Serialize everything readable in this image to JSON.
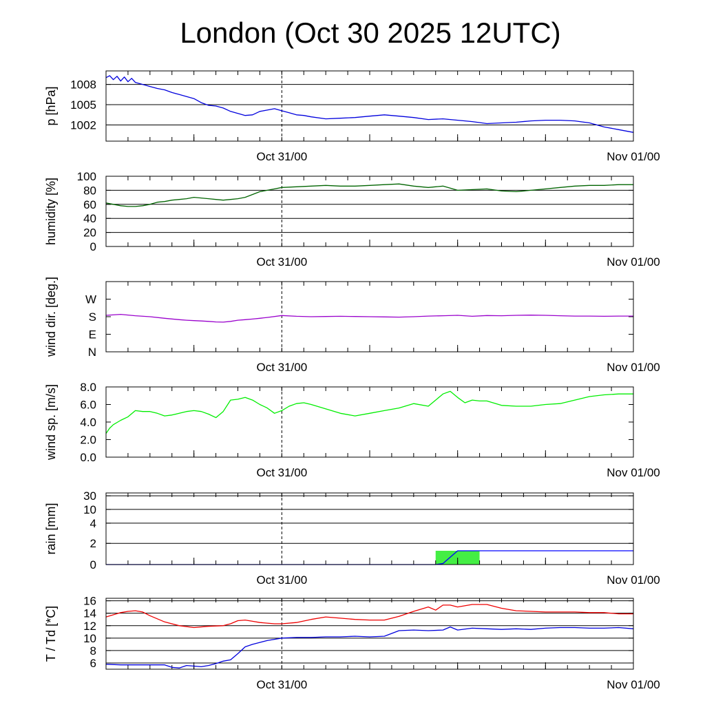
{
  "title": "London (Oct 30 2025 12UTC)",
  "time_axis": {
    "tick_labels": [
      "Oct 31/00",
      "Nov 01/00"
    ]
  },
  "chart_data": [
    {
      "type": "line",
      "ylabel": "p [hPa]",
      "ylim": [
        999.6,
        1010.0
      ],
      "yticks": [
        1008,
        1005,
        1002
      ],
      "ytick_labels": [
        "1008",
        "1005",
        "1002"
      ],
      "grid": true,
      "series": [
        {
          "color": "#0000dd",
          "x": [
            0,
            0.5,
            1,
            1.5,
            2,
            2.5,
            3,
            3.5,
            4,
            5,
            6,
            7,
            8,
            9,
            10,
            11,
            12,
            13,
            14,
            15,
            16,
            17,
            18,
            19,
            20,
            21,
            22,
            23,
            24,
            25,
            26,
            27,
            28,
            30,
            32,
            34,
            36,
            38,
            40,
            42,
            44,
            46,
            48,
            50,
            52,
            54,
            56,
            58,
            60,
            62,
            64,
            66,
            68,
            70,
            72
          ],
          "y": [
            1009.0,
            1009.3,
            1008.7,
            1009.2,
            1008.5,
            1009.1,
            1008.4,
            1008.9,
            1008.3,
            1008.0,
            1007.7,
            1007.4,
            1007.2,
            1006.8,
            1006.5,
            1006.2,
            1005.9,
            1005.3,
            1004.9,
            1004.8,
            1004.5,
            1004.0,
            1003.7,
            1003.4,
            1003.5,
            1004.0,
            1004.2,
            1004.4,
            1004.1,
            1003.8,
            1003.5,
            1003.4,
            1003.2,
            1002.9,
            1003.0,
            1003.1,
            1003.3,
            1003.5,
            1003.3,
            1003.1,
            1002.8,
            1002.9,
            1002.7,
            1002.5,
            1002.2,
            1002.3,
            1002.4,
            1002.6,
            1002.7,
            1002.7,
            1002.6,
            1002.3,
            1001.7,
            1001.3,
            1000.9
          ]
        }
      ]
    },
    {
      "type": "line",
      "ylabel": "humidity [%]",
      "ylim": [
        0,
        100
      ],
      "yticks": [
        0,
        20,
        40,
        60,
        80,
        100
      ],
      "ytick_labels": [
        "0",
        "20",
        "40",
        "60",
        "80",
        "100"
      ],
      "grid": true,
      "series": [
        {
          "color": "#006400",
          "x": [
            0,
            2,
            3,
            4,
            5,
            6,
            7,
            8,
            9,
            10,
            11,
            12,
            13,
            14,
            15,
            16,
            17,
            18,
            19,
            20,
            21,
            22,
            23,
            24,
            26,
            28,
            30,
            32,
            34,
            36,
            38,
            40,
            42,
            44,
            45,
            46,
            47,
            48,
            50,
            52,
            54,
            56,
            58,
            60,
            62,
            64,
            66,
            68,
            70,
            72
          ],
          "y": [
            62,
            58,
            57,
            57,
            58,
            60,
            63,
            64,
            66,
            67,
            68,
            70,
            69,
            68,
            67,
            66,
            67,
            68,
            70,
            74,
            78,
            80,
            82,
            84,
            85,
            86,
            87,
            86,
            86,
            87,
            88,
            89,
            86,
            84,
            85,
            86,
            83,
            80,
            81,
            82,
            79,
            78,
            80,
            82,
            84,
            86,
            87,
            87,
            88,
            88
          ]
        }
      ]
    },
    {
      "type": "line",
      "ylabel": "wind dir. [deg.]",
      "ylim": [
        0,
        360
      ],
      "yticks": [
        0,
        90,
        180,
        270
      ],
      "ytick_labels": [
        "N",
        "E",
        "S",
        "W"
      ],
      "grid": false,
      "series": [
        {
          "color": "#9900cc",
          "x": [
            0,
            2,
            4,
            6,
            8,
            10,
            11,
            12,
            13,
            14,
            15,
            16,
            17,
            18,
            19,
            20,
            21,
            22,
            24,
            26,
            28,
            30,
            32,
            34,
            36,
            38,
            40,
            42,
            44,
            46,
            48,
            50,
            52,
            54,
            56,
            58,
            60,
            62,
            64,
            66,
            68,
            70,
            72
          ],
          "y": [
            187,
            192,
            185,
            180,
            172,
            165,
            162,
            160,
            158,
            156,
            153,
            152,
            156,
            162,
            165,
            168,
            172,
            176,
            186,
            182,
            180,
            181,
            182,
            181,
            180,
            179,
            178,
            180,
            183,
            185,
            187,
            182,
            186,
            185,
            187,
            188,
            187,
            185,
            183,
            183,
            182,
            183,
            183
          ]
        }
      ]
    },
    {
      "type": "line",
      "ylabel": "wind sp. [m/s]",
      "ylim": [
        0,
        8.0
      ],
      "yticks": [
        0,
        2,
        4,
        6,
        8
      ],
      "ytick_labels": [
        "0.0",
        "2.0",
        "4.0",
        "6.0",
        "8.0"
      ],
      "grid": false,
      "series": [
        {
          "color": "#00ee00",
          "x": [
            0,
            0.5,
            1,
            2,
            3,
            4,
            5,
            6,
            7,
            8,
            9,
            10,
            11,
            12,
            13,
            14,
            15,
            16,
            17,
            18,
            19,
            20,
            21,
            22,
            23,
            24,
            25,
            26,
            27,
            28,
            30,
            32,
            34,
            36,
            38,
            40,
            42,
            44,
            45,
            46,
            47,
            48,
            49,
            50,
            51,
            52,
            54,
            56,
            58,
            60,
            62,
            64,
            66,
            68,
            70,
            72
          ],
          "y": [
            2.7,
            3.3,
            3.7,
            4.2,
            4.6,
            5.3,
            5.2,
            5.2,
            5.0,
            4.7,
            4.8,
            5.0,
            5.2,
            5.3,
            5.2,
            4.9,
            4.5,
            5.2,
            6.5,
            6.6,
            6.8,
            6.5,
            6.0,
            5.6,
            5.0,
            5.3,
            5.8,
            6.1,
            6.2,
            6.0,
            5.5,
            5.0,
            4.7,
            5.0,
            5.3,
            5.6,
            6.1,
            5.8,
            6.5,
            7.2,
            7.5,
            6.8,
            6.2,
            6.5,
            6.4,
            6.4,
            5.9,
            5.8,
            5.8,
            6.0,
            6.1,
            6.5,
            6.9,
            7.1,
            7.2,
            7.2
          ]
        }
      ]
    },
    {
      "type": "line",
      "ylabel": "rain [mm]",
      "ylim": [
        0,
        30
      ],
      "yticks": [
        0,
        2,
        4,
        10,
        30
      ],
      "ytick_labels": [
        "0",
        "2",
        "4",
        "10",
        "30"
      ],
      "grid": true,
      "precip_bars": [
        {
          "x0": 45,
          "x1": 51,
          "value": 1.3,
          "color": "#44ee44"
        }
      ],
      "series": [
        {
          "color": "#0000ff",
          "x": [
            0,
            45,
            46,
            47,
            48,
            72
          ],
          "y": [
            0,
            0,
            0.1,
            0.7,
            1.3,
            1.3
          ]
        }
      ]
    },
    {
      "type": "line",
      "ylabel": "T / Td [*C]",
      "ylim": [
        5.0,
        16.4
      ],
      "yticks": [
        6,
        8,
        10,
        12,
        14,
        16
      ],
      "ytick_labels": [
        "6",
        "8",
        "10",
        "12",
        "14",
        "16"
      ],
      "grid": true,
      "series": [
        {
          "color": "#ee0000",
          "x": [
            0,
            2,
            3,
            4,
            5,
            6,
            8,
            10,
            12,
            14,
            16,
            17,
            18,
            19,
            20,
            21,
            22,
            23,
            24,
            26,
            28,
            30,
            32,
            34,
            36,
            38,
            40,
            42,
            44,
            45,
            46,
            47,
            48,
            50,
            52,
            54,
            56,
            58,
            60,
            62,
            64,
            66,
            68,
            70,
            72
          ],
          "y": [
            13.4,
            14.1,
            14.3,
            14.4,
            14.2,
            13.6,
            12.6,
            12.0,
            11.7,
            11.9,
            12.0,
            12.3,
            12.8,
            12.9,
            12.7,
            12.5,
            12.4,
            12.3,
            12.3,
            12.5,
            13.0,
            13.4,
            13.2,
            13.0,
            12.9,
            12.9,
            13.5,
            14.3,
            15.0,
            14.5,
            15.3,
            15.3,
            15.0,
            15.4,
            15.4,
            14.8,
            14.4,
            14.3,
            14.2,
            14.2,
            14.2,
            14.1,
            14.1,
            13.9,
            13.9
          ]
        },
        {
          "color": "#0000dd",
          "x": [
            0,
            2,
            4,
            6,
            8,
            9,
            10,
            11,
            12,
            13,
            14,
            15,
            16,
            17,
            18,
            19,
            20,
            21,
            22,
            23,
            24,
            26,
            28,
            30,
            32,
            34,
            36,
            38,
            40,
            42,
            44,
            46,
            47,
            48,
            50,
            52,
            54,
            56,
            58,
            60,
            62,
            64,
            66,
            68,
            70,
            72
          ],
          "y": [
            5.8,
            5.7,
            5.7,
            5.7,
            5.7,
            5.3,
            5.2,
            5.6,
            5.5,
            5.4,
            5.6,
            5.9,
            6.3,
            6.5,
            7.5,
            8.6,
            9.0,
            9.3,
            9.6,
            9.8,
            10.0,
            10.1,
            10.1,
            10.2,
            10.2,
            10.3,
            10.2,
            10.3,
            11.2,
            11.3,
            11.2,
            11.3,
            11.8,
            11.3,
            11.6,
            11.5,
            11.4,
            11.5,
            11.4,
            11.6,
            11.7,
            11.7,
            11.6,
            11.6,
            11.7,
            11.5
          ]
        }
      ]
    }
  ]
}
